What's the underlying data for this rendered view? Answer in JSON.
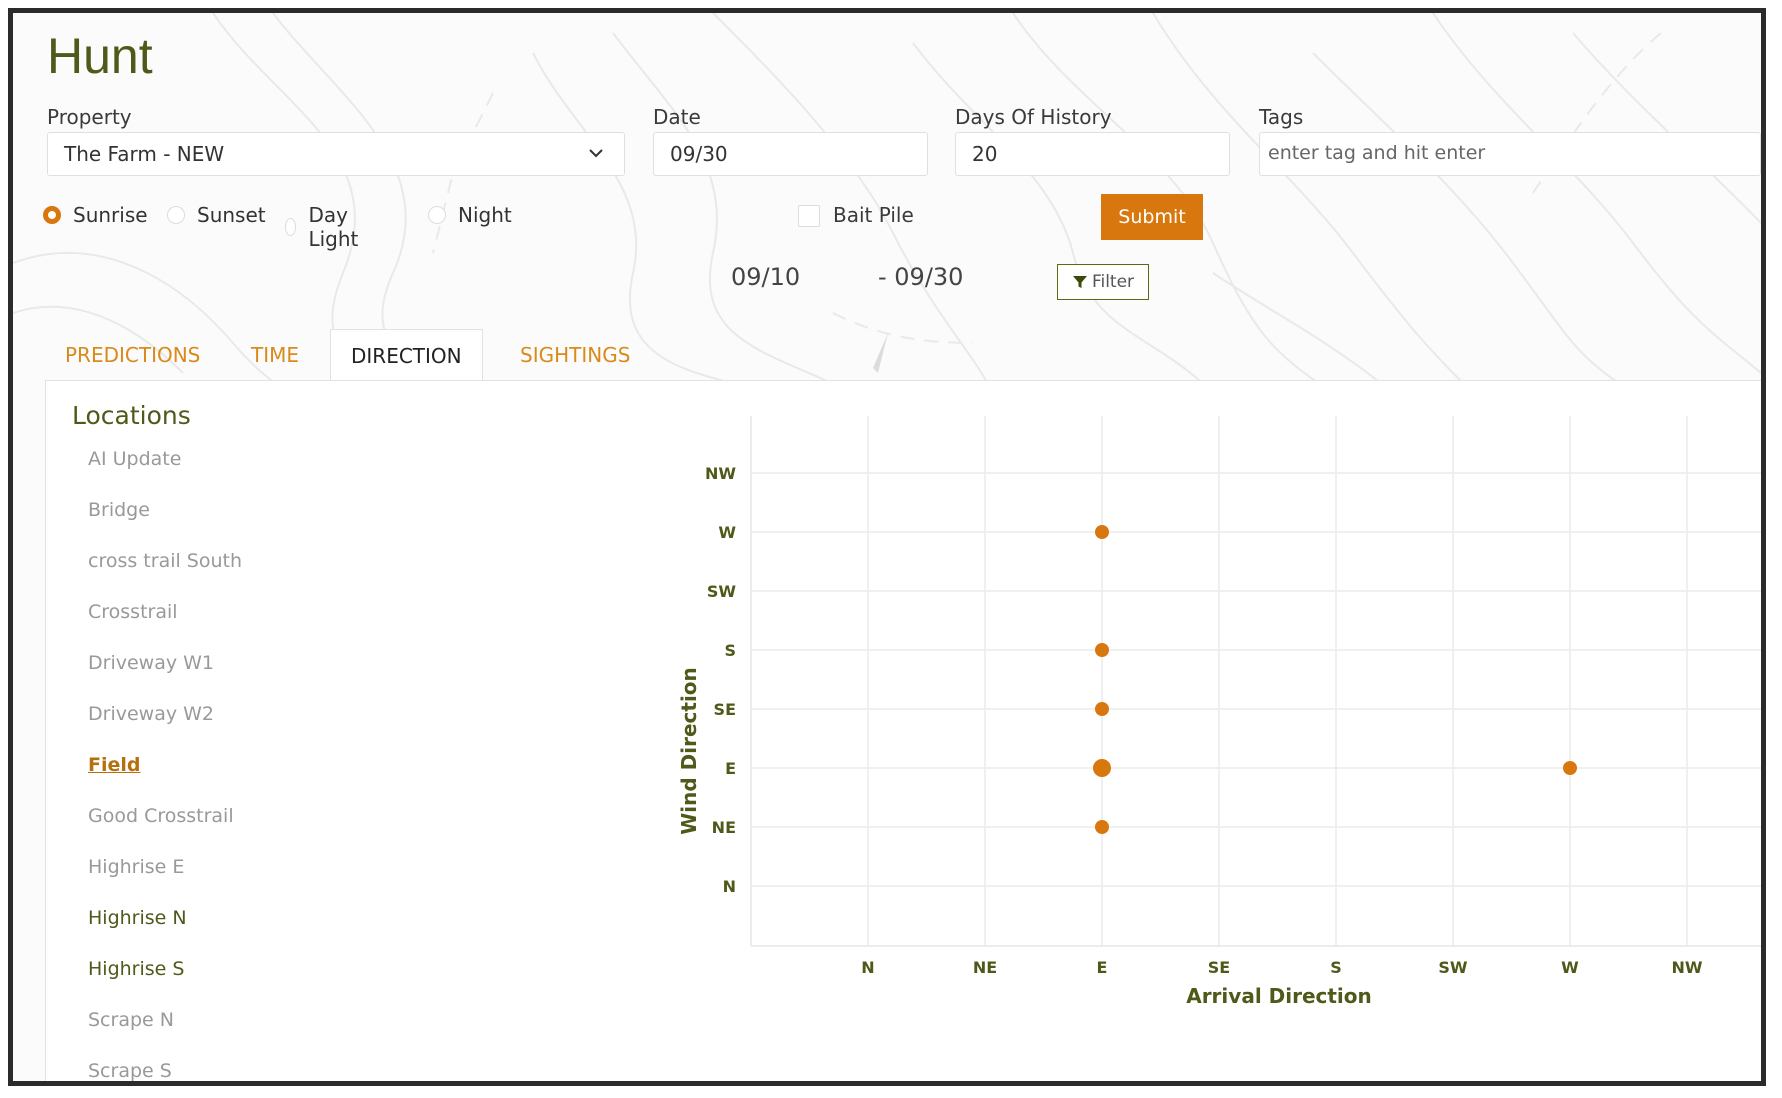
{
  "app": {
    "title": "Hunt"
  },
  "form": {
    "property": {
      "label": "Property",
      "value": "The Farm - NEW"
    },
    "date": {
      "label": "Date",
      "value": "09/30"
    },
    "days_history": {
      "label": "Days Of History",
      "value": "20"
    },
    "tags": {
      "label": "Tags",
      "placeholder": "enter tag and hit enter"
    },
    "time_options": [
      {
        "label": "Sunrise",
        "selected": true
      },
      {
        "label": "Sunset",
        "selected": false
      },
      {
        "label": "Day Light",
        "selected": false
      },
      {
        "label": "Night",
        "selected": false
      }
    ],
    "bait_pile": {
      "label": "Bait Pile",
      "checked": false
    },
    "submit_label": "Submit"
  },
  "range": {
    "start": "09/10",
    "end": "- 09/30"
  },
  "filter_label": "Filter",
  "tabs": [
    {
      "label": "PREDICTIONS",
      "active": false
    },
    {
      "label": "TIME",
      "active": false
    },
    {
      "label": "DIRECTION",
      "active": true
    },
    {
      "label": "SIGHTINGS",
      "active": false
    }
  ],
  "locations": {
    "title": "Locations",
    "items": [
      {
        "label": "AI Update",
        "style": "muted"
      },
      {
        "label": "Bridge",
        "style": "muted"
      },
      {
        "label": "cross trail South",
        "style": "muted"
      },
      {
        "label": "Crosstrail",
        "style": "muted"
      },
      {
        "label": "Driveway W1",
        "style": "muted"
      },
      {
        "label": "Driveway W2",
        "style": "muted"
      },
      {
        "label": "Field",
        "style": "selected"
      },
      {
        "label": "Good Crosstrail",
        "style": "muted"
      },
      {
        "label": "Highrise E",
        "style": "muted"
      },
      {
        "label": "Highrise N",
        "style": "green"
      },
      {
        "label": "Highrise S",
        "style": "green"
      },
      {
        "label": "Scrape N",
        "style": "muted"
      },
      {
        "label": "Scrape S",
        "style": "muted"
      }
    ]
  },
  "colors": {
    "accent": "#d9770f",
    "brand": "#4e5a1a",
    "point": "#d9770f"
  },
  "chart_data": {
    "type": "scatter",
    "xlabel": "Arrival Direction",
    "ylabel": "Wind Direction",
    "x_categories": [
      "N",
      "NE",
      "E",
      "SE",
      "S",
      "SW",
      "W",
      "NW"
    ],
    "y_categories": [
      "N",
      "NE",
      "E",
      "SE",
      "S",
      "SW",
      "W",
      "NW"
    ],
    "points": [
      {
        "x": "E",
        "y": "W",
        "count": 1
      },
      {
        "x": "E",
        "y": "S",
        "count": 1
      },
      {
        "x": "E",
        "y": "SE",
        "count": 1
      },
      {
        "x": "E",
        "y": "E",
        "count": 2
      },
      {
        "x": "E",
        "y": "NE",
        "count": 1
      },
      {
        "x": "W",
        "y": "E",
        "count": 1
      }
    ],
    "grid": true
  }
}
